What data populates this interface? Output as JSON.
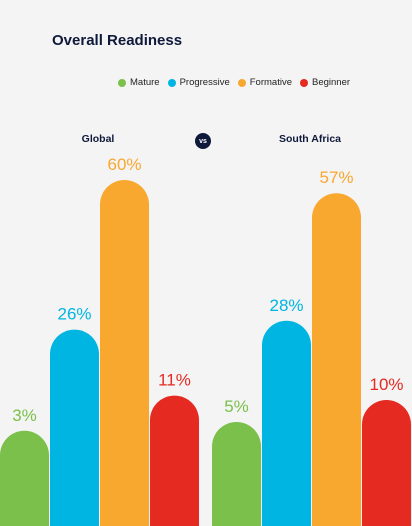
{
  "header": {
    "title": "Overall Readiness"
  },
  "vs_label": "vs",
  "colors": {
    "Mature": "#7ac04a",
    "Progressive": "#00b5e2",
    "Formative": "#f8a72f",
    "Beginner": "#e42a21"
  },
  "legend": [
    {
      "label": "Mature",
      "color": "#7ac04a"
    },
    {
      "label": "Progressive",
      "color": "#00b5e2"
    },
    {
      "label": "Formative",
      "color": "#f8a72f"
    },
    {
      "label": "Beginner",
      "color": "#e42a21"
    }
  ],
  "chart_data": {
    "type": "bar",
    "title": "Overall Readiness",
    "categories": [
      "Global",
      "South Africa"
    ],
    "series": [
      {
        "name": "Mature",
        "values": [
          3,
          5
        ]
      },
      {
        "name": "Progressive",
        "values": [
          26,
          28
        ]
      },
      {
        "name": "Formative",
        "values": [
          60,
          57
        ]
      },
      {
        "name": "Beginner",
        "values": [
          11,
          10
        ]
      }
    ],
    "data_labels": [
      [
        "3%",
        "26%",
        "60%",
        "11%"
      ],
      [
        "5%",
        "28%",
        "57%",
        "10%"
      ]
    ],
    "unit": "%",
    "ylim": [
      0,
      60
    ],
    "grid": false,
    "legend_position": "top-right"
  }
}
